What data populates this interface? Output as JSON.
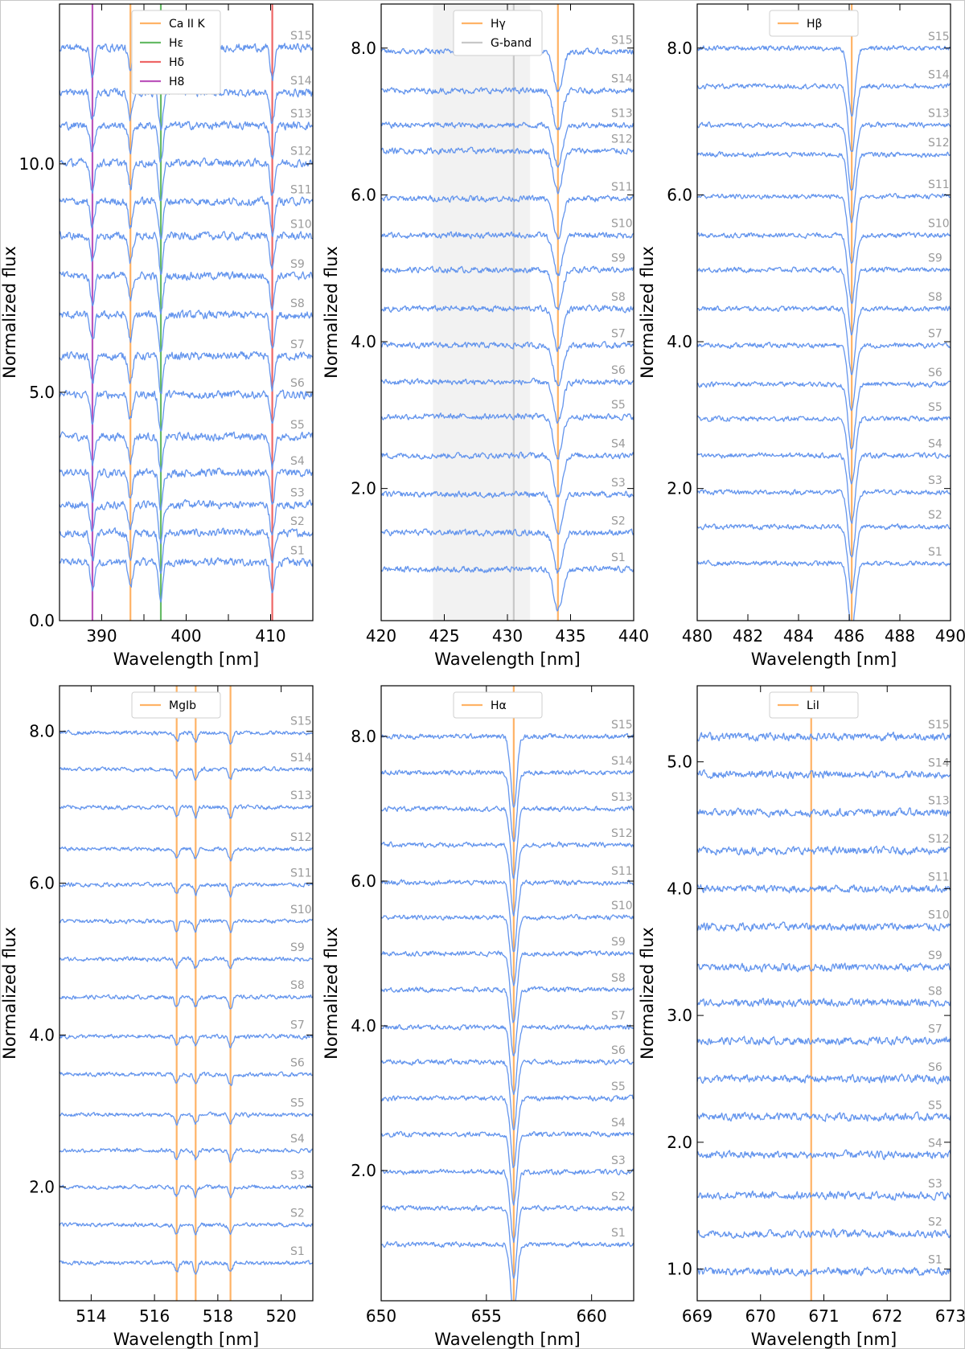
{
  "figure": {
    "series_names": [
      "S1",
      "S2",
      "S3",
      "S4",
      "S5",
      "S6",
      "S7",
      "S8",
      "S9",
      "S10",
      "S11",
      "S12",
      "S13",
      "S14",
      "S15"
    ]
  },
  "chart_data": [
    {
      "type": "line",
      "xlabel": "Wavelength [nm]",
      "ylabel": "Normalized flux",
      "xlim": [
        385,
        415
      ],
      "ylim": [
        0,
        13.5
      ],
      "xticks": [
        390,
        395,
        400,
        405,
        410
      ],
      "xtick_labels": [
        "390",
        "",
        "400",
        "",
        "410"
      ],
      "yticks": [
        0.0,
        5.0,
        10.0
      ],
      "ytick_labels": [
        "0.0",
        "5.0",
        "10.0"
      ],
      "offsets": [
        1.28,
        1.92,
        2.54,
        3.24,
        4.03,
        4.95,
        5.79,
        6.69,
        7.55,
        8.42,
        9.18,
        10.02,
        10.84,
        11.56,
        12.55
      ],
      "noise": 0.13,
      "lines": [
        {
          "name": "Ca II K",
          "x": 393.4,
          "color": "#FFB366",
          "depth": 0.55,
          "width": 0.25
        },
        {
          "name": "Hε",
          "x": 397.0,
          "color": "#66BB66",
          "depth": 0.8,
          "width": 0.25
        },
        {
          "name": "Hδ",
          "x": 410.2,
          "color": "#EE6666",
          "depth": 0.7,
          "width": 0.25
        },
        {
          "name": "H8",
          "x": 388.9,
          "color": "#BB55BB",
          "depth": 0.6,
          "width": 0.25
        }
      ],
      "shaded": [],
      "legend": [
        "Ca II K",
        "Hε",
        "Hδ",
        "H8"
      ]
    },
    {
      "type": "line",
      "xlabel": "Wavelength [nm]",
      "ylabel": "Normalized flux",
      "xlim": [
        420,
        440
      ],
      "ylim": [
        0.2,
        8.6
      ],
      "xticks": [
        420,
        425,
        430,
        435,
        440
      ],
      "xtick_labels": [
        "420",
        "425",
        "430",
        "435",
        "440"
      ],
      "yticks": [
        2.0,
        4.0,
        6.0,
        8.0
      ],
      "ytick_labels": [
        "2.0",
        "4.0",
        "6.0",
        "8.0"
      ],
      "offsets": [
        0.9,
        1.4,
        1.92,
        2.45,
        2.98,
        3.45,
        3.95,
        4.45,
        4.98,
        5.45,
        5.95,
        6.6,
        6.95,
        7.42,
        7.95
      ],
      "noise": 0.06,
      "lines": [
        {
          "name": "Hγ",
          "x": 434.0,
          "color": "#FFB366",
          "depth": 0.55,
          "width": 0.35
        },
        {
          "name": "G-band",
          "x": 430.5,
          "color": "#C8C8C8",
          "depth": 0.0,
          "width": 0.3
        }
      ],
      "shaded": [
        [
          424.1,
          431.8
        ]
      ],
      "legend": [
        "Hγ",
        "G-band"
      ]
    },
    {
      "type": "line",
      "xlabel": "Wavelength [nm]",
      "ylabel": "Normalized flux",
      "xlim": [
        480,
        490
      ],
      "ylim": [
        0.2,
        8.6
      ],
      "xticks": [
        480,
        482,
        484,
        486,
        488,
        490
      ],
      "xtick_labels": [
        "480",
        "482",
        "484",
        "486",
        "488",
        "490"
      ],
      "yticks": [
        2.0,
        4.0,
        6.0,
        8.0
      ],
      "ytick_labels": [
        "2.0",
        "4.0",
        "6.0",
        "8.0"
      ],
      "offsets": [
        0.98,
        1.48,
        1.95,
        2.45,
        2.95,
        3.42,
        3.95,
        4.45,
        4.98,
        5.45,
        5.98,
        6.55,
        6.95,
        7.48,
        8.0
      ],
      "noise": 0.05,
      "lines": [
        {
          "name": "Hβ",
          "x": 486.1,
          "color": "#FFB366",
          "depth": 0.9,
          "width": 0.14
        }
      ],
      "shaded": [],
      "legend": [
        "Hβ"
      ]
    },
    {
      "type": "line",
      "xlabel": "Wavelength [nm]",
      "ylabel": "Normalized flux",
      "xlim": [
        513,
        521
      ],
      "ylim": [
        0.5,
        8.6
      ],
      "xticks": [
        514,
        516,
        518,
        520
      ],
      "xtick_labels": [
        "514",
        "516",
        "518",
        "520"
      ],
      "yticks": [
        2.0,
        4.0,
        6.0,
        8.0
      ],
      "ytick_labels": [
        "2.0",
        "4.0",
        "6.0",
        "8.0"
      ],
      "offsets": [
        1.0,
        1.5,
        2.0,
        2.48,
        2.95,
        3.48,
        3.98,
        4.5,
        5.0,
        5.5,
        5.98,
        6.45,
        7.0,
        7.5,
        7.98
      ],
      "noise": 0.04,
      "lines": [
        {
          "name": "MgIb",
          "x": 516.7,
          "color": "#FFB366",
          "depth": 0.12,
          "width": 0.06
        },
        {
          "name": "",
          "x": 517.3,
          "color": "#FFB366",
          "depth": 0.12,
          "width": 0.06
        },
        {
          "name": "",
          "x": 518.4,
          "color": "#FFB366",
          "depth": 0.14,
          "width": 0.06
        }
      ],
      "shaded": [],
      "legend": [
        "MgIb"
      ]
    },
    {
      "type": "line",
      "xlabel": "Wavelength [nm]",
      "ylabel": "Normalized flux",
      "xlim": [
        650,
        662
      ],
      "ylim": [
        0.2,
        8.7
      ],
      "xticks": [
        650,
        655,
        660
      ],
      "xtick_labels": [
        "650",
        "655",
        "660"
      ],
      "yticks": [
        2.0,
        4.0,
        6.0,
        8.0
      ],
      "ytick_labels": [
        "2.0",
        "4.0",
        "6.0",
        "8.0"
      ],
      "offsets": [
        0.98,
        1.48,
        1.98,
        2.5,
        3.0,
        3.5,
        3.98,
        4.5,
        5.0,
        5.5,
        5.98,
        6.5,
        7.0,
        7.5,
        8.0
      ],
      "noise": 0.05,
      "lines": [
        {
          "name": "Hα",
          "x": 656.3,
          "color": "#FFB366",
          "depth": 0.95,
          "width": 0.15
        }
      ],
      "shaded": [],
      "legend": [
        "Hα"
      ]
    },
    {
      "type": "line",
      "xlabel": "Wavelength [nm]",
      "ylabel": "Normalized flux",
      "xlim": [
        669,
        673
      ],
      "ylim": [
        0.75,
        5.6
      ],
      "xticks": [
        669,
        670,
        671,
        672,
        673
      ],
      "xtick_labels": [
        "669",
        "670",
        "671",
        "672",
        "673"
      ],
      "yticks": [
        1.0,
        2.0,
        3.0,
        4.0,
        5.0
      ],
      "ytick_labels": [
        "1.0",
        "2.0",
        "3.0",
        "4.0",
        "5.0"
      ],
      "offsets": [
        0.98,
        1.28,
        1.58,
        1.9,
        2.2,
        2.5,
        2.8,
        3.1,
        3.38,
        3.7,
        4.0,
        4.3,
        4.6,
        4.9,
        5.2
      ],
      "noise": 0.045,
      "lines": [
        {
          "name": "LiI",
          "x": 670.8,
          "color": "#FFB366",
          "depth": 0.0,
          "width": 0.05
        }
      ],
      "shaded": [],
      "legend": [
        "LiI"
      ]
    }
  ]
}
